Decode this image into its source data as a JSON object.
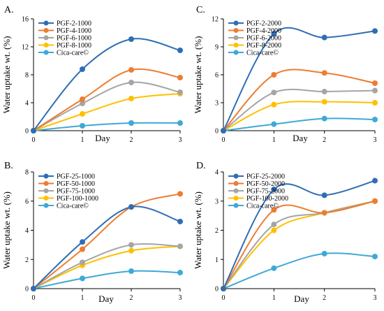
{
  "chart_data": [
    {
      "panel": "A.",
      "type": "line",
      "xlabel": "Day",
      "ylabel": "Water uptake wt. (%)",
      "x": [
        0,
        1,
        2,
        3
      ],
      "xticks": [
        "0",
        "1",
        "2",
        "3"
      ],
      "ylim": [
        0,
        16
      ],
      "yticks": [
        "0",
        "4",
        "8",
        "12",
        "16"
      ],
      "legend_position": "top-left",
      "grid": false,
      "series": [
        {
          "name": "PGF-2-1000",
          "color": "#2F6DB5",
          "values": [
            0,
            8.8,
            13.1,
            11.5
          ]
        },
        {
          "name": "PGF-4-1000",
          "color": "#ED7D31",
          "values": [
            0,
            4.5,
            8.7,
            7.6
          ]
        },
        {
          "name": "PGF-6-1000",
          "color": "#A5A5A5",
          "values": [
            0,
            3.9,
            6.9,
            5.5
          ]
        },
        {
          "name": "PGF-8-1000",
          "color": "#FFC000",
          "values": [
            0,
            2.4,
            4.6,
            5.3
          ]
        },
        {
          "name": "Cica-care©",
          "color": "#3FA9D6",
          "values": [
            0,
            0.7,
            1.1,
            1.1
          ]
        }
      ]
    },
    {
      "panel": "C.",
      "type": "line",
      "xlabel": "Day",
      "ylabel": "Water uptake wt. (%)",
      "x": [
        0,
        1,
        2,
        3
      ],
      "xticks": [
        "0",
        "1",
        "2",
        "3"
      ],
      "ylim": [
        0,
        12
      ],
      "yticks": [
        "0",
        "3",
        "6",
        "9",
        "12"
      ],
      "legend_position": "top-left",
      "grid": false,
      "series": [
        {
          "name": "PGF-2-2000",
          "color": "#2F6DB5",
          "values": [
            0,
            10.4,
            10.0,
            10.7
          ]
        },
        {
          "name": "PGF-4-2000",
          "color": "#ED7D31",
          "values": [
            0,
            6.0,
            6.2,
            5.1
          ]
        },
        {
          "name": "PGF-6-2000",
          "color": "#A5A5A5",
          "values": [
            0,
            4.1,
            4.2,
            4.3
          ]
        },
        {
          "name": "PGF-8-2000",
          "color": "#FFC000",
          "values": [
            0,
            2.8,
            3.1,
            3.0
          ]
        },
        {
          "name": "Cica-care©",
          "color": "#3FA9D6",
          "values": [
            0,
            0.7,
            1.3,
            1.2
          ]
        }
      ]
    },
    {
      "panel": "B.",
      "type": "line",
      "xlabel": "Day",
      "ylabel": "Water uptake wt. (%)",
      "x": [
        0,
        1,
        2,
        3
      ],
      "xticks": [
        "0",
        "1",
        "2",
        "3"
      ],
      "ylim": [
        0,
        8
      ],
      "yticks": [
        "0",
        "2",
        "4",
        "6",
        "8"
      ],
      "legend_position": "top-left",
      "grid": false,
      "series": [
        {
          "name": "PGF-25-1000",
          "color": "#2F6DB5",
          "values": [
            0,
            3.2,
            5.6,
            4.6
          ]
        },
        {
          "name": "PGF-50-1000",
          "color": "#ED7D31",
          "values": [
            0,
            2.7,
            5.6,
            6.5
          ]
        },
        {
          "name": "PGF-75-1000",
          "color": "#A5A5A5",
          "values": [
            0,
            1.8,
            3.0,
            2.9
          ]
        },
        {
          "name": "PGF-100-1000",
          "color": "#FFC000",
          "values": [
            0,
            1.6,
            2.6,
            2.9
          ]
        },
        {
          "name": "Cica-care©",
          "color": "#3FA9D6",
          "values": [
            0,
            0.7,
            1.2,
            1.1
          ]
        }
      ]
    },
    {
      "panel": "D.",
      "type": "line",
      "xlabel": "Day",
      "ylabel": "Water uptake wt. (%)",
      "x": [
        0,
        1,
        2,
        3
      ],
      "xticks": [
        "0",
        "1",
        "2",
        "3"
      ],
      "ylim": [
        0,
        4
      ],
      "yticks": [
        "0",
        "1",
        "2",
        "3",
        "4"
      ],
      "legend_position": "top-left",
      "grid": false,
      "series": [
        {
          "name": "PGF-25-2000",
          "color": "#2F6DB5",
          "values": [
            0,
            3.4,
            3.2,
            3.7
          ]
        },
        {
          "name": "PGF-50-2000",
          "color": "#ED7D31",
          "values": [
            0,
            2.7,
            2.6,
            3.0
          ]
        },
        {
          "name": "PGF-75-2000",
          "color": "#A5A5A5",
          "values": [
            0,
            2.2,
            2.6,
            3.0
          ]
        },
        {
          "name": "PGF-100-2000",
          "color": "#FFC000",
          "values": [
            0,
            2.0,
            2.6,
            3.0
          ]
        },
        {
          "name": "Cica-care©",
          "color": "#3FA9D6",
          "values": [
            0,
            0.7,
            1.2,
            1.1
          ]
        }
      ]
    }
  ]
}
